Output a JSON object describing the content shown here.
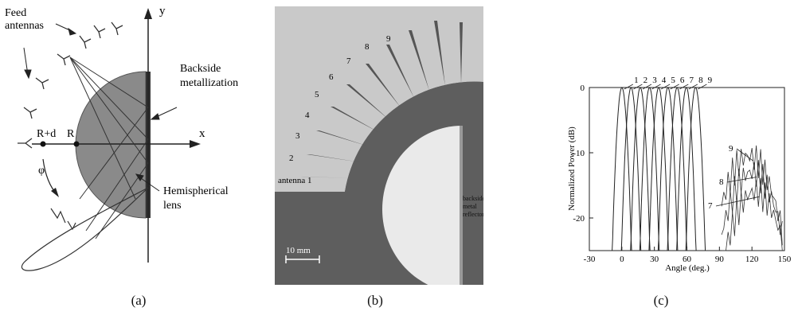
{
  "panel_a": {
    "feed_label_1": "Feed",
    "feed_label_2": "antennas",
    "backside_label_1": "Backside",
    "backside_label_2": "metallization",
    "lens_label_1": "Hemispherical",
    "lens_label_2": "lens",
    "axis_y": "y",
    "axis_x": "x",
    "point_rd": "R+d",
    "point_r": "R",
    "angle_phi": "φ",
    "caption": "(a)"
  },
  "panel_b": {
    "antenna_numbers": [
      "2",
      "3",
      "4",
      "5",
      "6",
      "7",
      "8",
      "9"
    ],
    "antenna_1_label": "antenna 1",
    "reflector_1": "backside",
    "reflector_2": "metal",
    "reflector_3": "reflector",
    "scale_label": "10 mm",
    "caption": "(b)"
  },
  "panel_c": {
    "beam_labels": [
      "1",
      "2",
      "3",
      "4",
      "5",
      "6",
      "7",
      "8",
      "9"
    ],
    "side_labels": [
      "9",
      "8",
      "7"
    ],
    "caption": "(c)"
  },
  "chart_data": {
    "type": "line",
    "title": "",
    "xlabel": "Angle (deg.)",
    "ylabel": "Normalized Power (dB)",
    "xlim": [
      -30,
      150
    ],
    "ylim": [
      -25,
      0
    ],
    "xticks": [
      "-30",
      "0",
      "30",
      "60",
      "90",
      "120",
      "150"
    ],
    "yticks": [
      "0",
      "-10",
      "-20"
    ],
    "series": [
      {
        "name": "1",
        "peak_angle": 0,
        "peak_db": 0
      },
      {
        "name": "2",
        "peak_angle": 8.5,
        "peak_db": 0
      },
      {
        "name": "3",
        "peak_angle": 17,
        "peak_db": 0
      },
      {
        "name": "4",
        "peak_angle": 25.5,
        "peak_db": 0
      },
      {
        "name": "5",
        "peak_angle": 34,
        "peak_db": 0
      },
      {
        "name": "6",
        "peak_angle": 42.5,
        "peak_db": 0
      },
      {
        "name": "7",
        "peak_angle": 51,
        "peak_db": 0
      },
      {
        "name": "8",
        "peak_angle": 59.5,
        "peak_db": 0
      },
      {
        "name": "9",
        "peak_angle": 68,
        "peak_db": 0
      }
    ],
    "side_lobe_peaks": [
      {
        "name": "9",
        "angle": 117,
        "db": -10.5
      },
      {
        "name": "8",
        "angle": 120,
        "db": -13
      },
      {
        "name": "7",
        "angle": 123,
        "db": -16
      }
    ],
    "grid": false
  }
}
